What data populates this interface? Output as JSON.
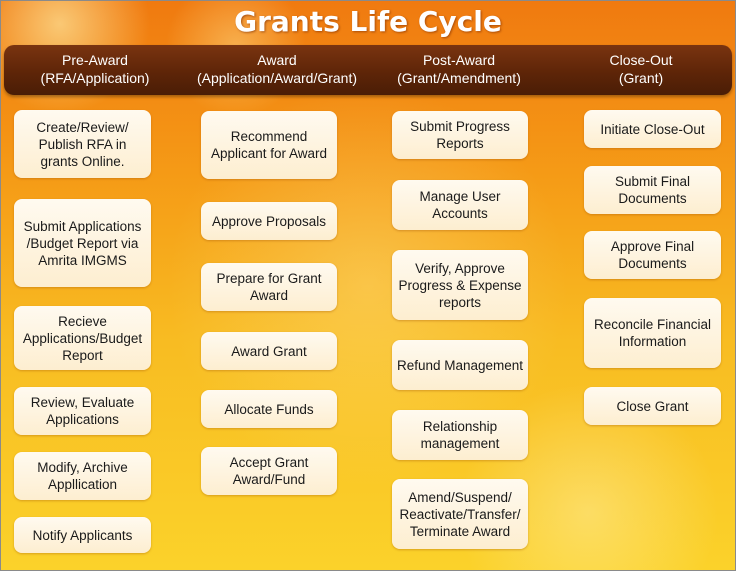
{
  "title": "Grants Life Cycle",
  "phases": [
    {
      "name": "Pre-Award",
      "sub": "(RFA/Application)",
      "steps": [
        "Create/Review/ Publish RFA in grants Online.",
        "Submit Applications /Budget Report via Amrita IMGMS",
        "Recieve Applications/Budget Report",
        "Review, Evaluate Applications",
        "Modify, Archive Appllication",
        "Notify Applicants"
      ]
    },
    {
      "name": "Award",
      "sub": "(Application/Award/Grant)",
      "steps": [
        "Recommend Applicant for Award",
        "Approve Proposals",
        "Prepare for Grant Award",
        "Award Grant",
        "Allocate Funds",
        "Accept Grant Award/Fund"
      ]
    },
    {
      "name": "Post-Award",
      "sub": "(Grant/Amendment)",
      "steps": [
        "Submit Progress Reports",
        "Manage User Accounts",
        "Verify, Approve Progress & Expense reports",
        "Refund Management",
        "Relationship management",
        "Amend/Suspend/ Reactivate/Transfer/ Terminate Award"
      ]
    },
    {
      "name": "Close-Out",
      "sub": "(Grant)",
      "steps": [
        "Initiate Close-Out",
        "Submit Final Documents",
        "Approve Final Documents",
        "Reconcile Financial Information",
        "Close Grant"
      ]
    }
  ]
}
